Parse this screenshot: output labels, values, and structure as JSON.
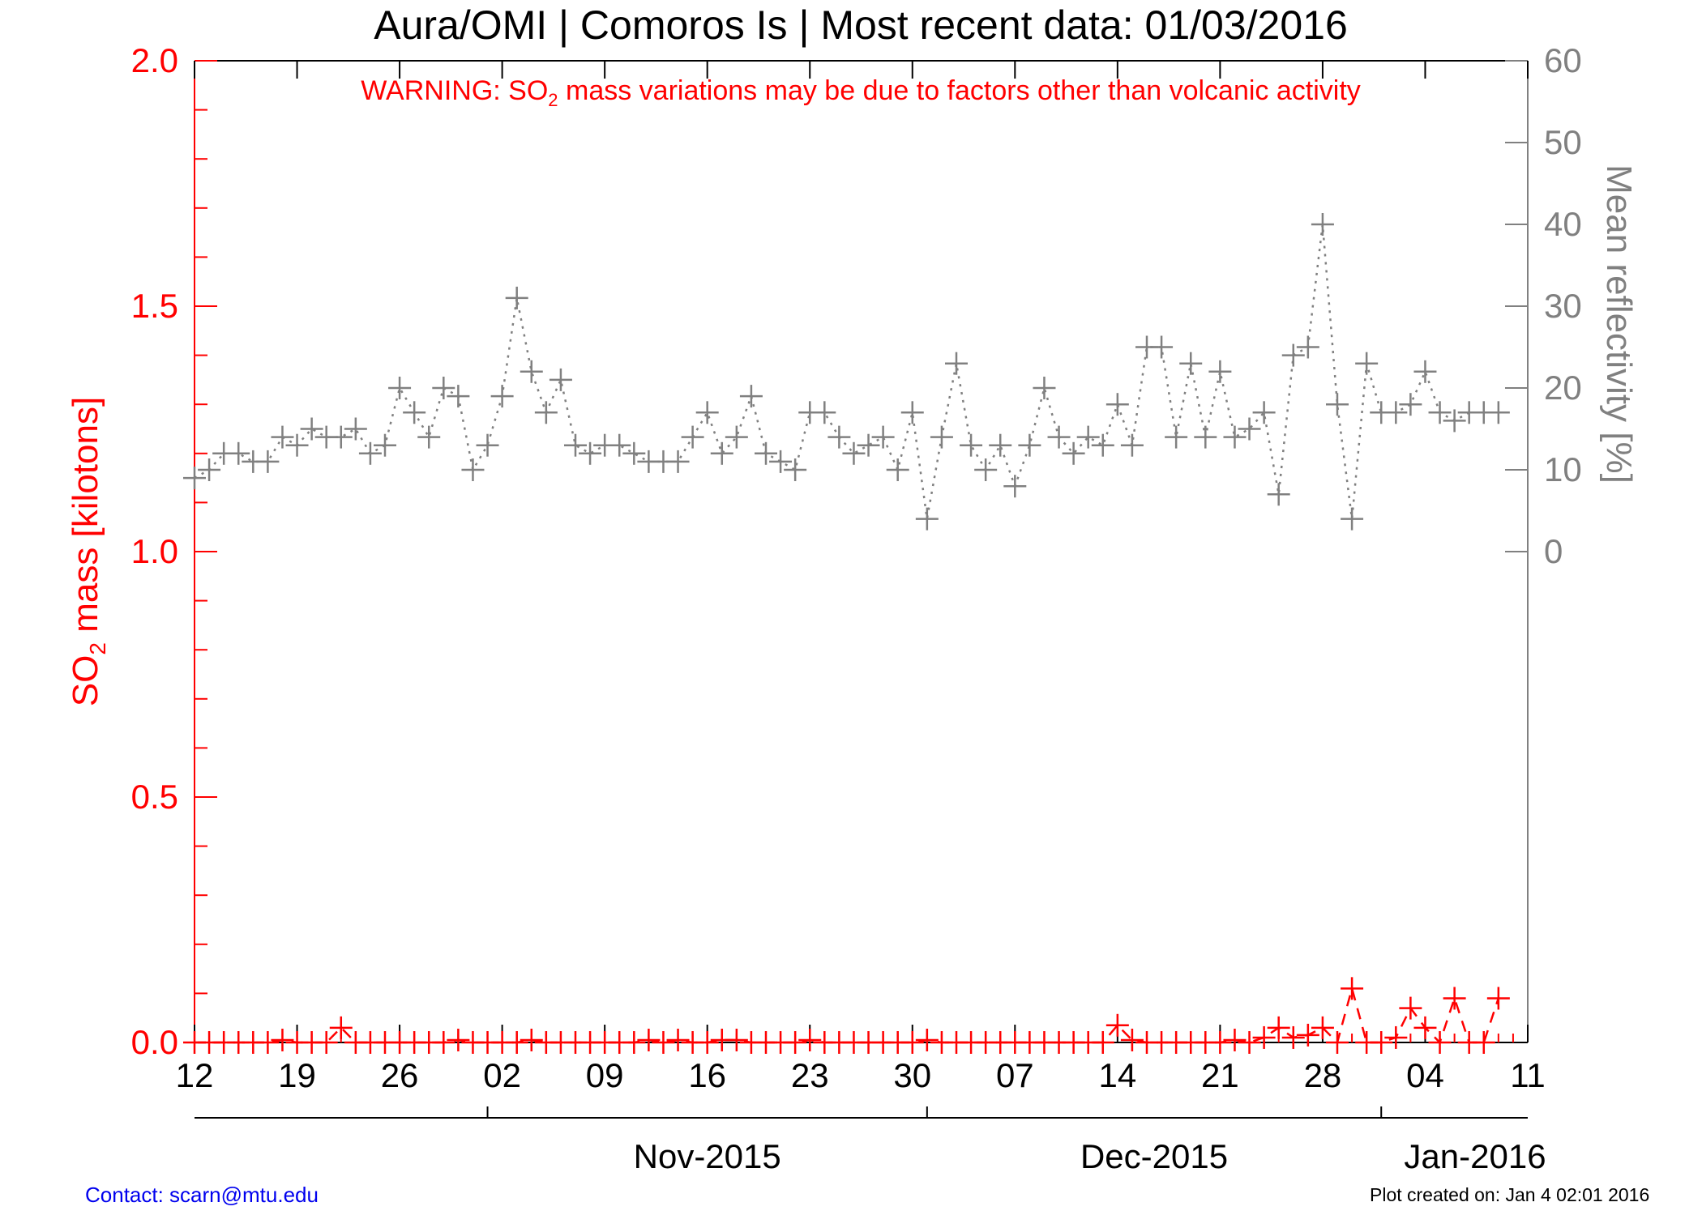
{
  "chart_data": {
    "type": "scatter",
    "title": "Aura/OMI | Comoros Is | Most recent data: 01/03/2016",
    "warning": {
      "prefix": "WARNING: SO",
      "subscript": "2",
      "suffix": " mass variations may be due to factors other than volcanic activity"
    },
    "ylabel_left": {
      "prefix": "SO",
      "subscript": "2",
      "suffix": " mass [kilotons]"
    },
    "ylabel_right": "Mean reflectivity [%]",
    "ylim_left": [
      0,
      2.0
    ],
    "ylim_right": [
      -60,
      60
    ],
    "left_ticks": [
      "0.0",
      "0.5",
      "1.0",
      "1.5",
      "2.0"
    ],
    "right_ticks": [
      "0",
      "10",
      "20",
      "30",
      "40",
      "50",
      "60"
    ],
    "x_tick_labels": [
      "12",
      "19",
      "26",
      "02",
      "09",
      "16",
      "23",
      "30",
      "07",
      "14",
      "21",
      "28",
      "04",
      "11"
    ],
    "month_labels": [
      "Nov-2015",
      "Dec-2015",
      "Jan-2016"
    ],
    "xlim_days_from_oct12": [
      0,
      91
    ],
    "colors": {
      "so2": "#ff0000",
      "reflectivity": "#808080",
      "axis": "#000000"
    },
    "series": [
      {
        "name": "SO2 mass",
        "axis": "left",
        "marker": "+",
        "line": "dashed",
        "x": [
          0,
          1,
          2,
          3,
          4,
          5,
          6,
          7,
          8,
          9,
          10,
          11,
          12,
          13,
          14,
          15,
          16,
          17,
          18,
          19,
          20,
          21,
          22,
          23,
          24,
          25,
          26,
          27,
          28,
          29,
          30,
          31,
          32,
          33,
          34,
          35,
          36,
          37,
          38,
          39,
          40,
          41,
          42,
          43,
          44,
          45,
          46,
          47,
          48,
          49,
          50,
          51,
          52,
          53,
          54,
          55,
          56,
          57,
          58,
          59,
          60,
          61,
          62,
          63,
          64,
          65,
          66,
          67,
          68,
          69,
          70,
          71,
          72,
          73,
          74,
          75,
          76,
          77,
          78,
          79,
          80,
          81,
          82,
          83,
          84,
          85,
          86,
          87,
          88,
          89
        ],
        "y": [
          0.0,
          0.0,
          0.0,
          0.0,
          0.0,
          0.0,
          0.005,
          0.0,
          0.0,
          0.0,
          0.03,
          0.0,
          0.0,
          0.0,
          0.0,
          0.0,
          0.0,
          0.0,
          0.005,
          0.0,
          0.0,
          0.0,
          0.0,
          0.005,
          0.0,
          0.0,
          0.0,
          0.0,
          0.0,
          0.0,
          0.0,
          0.005,
          0.0,
          0.005,
          0.0,
          0.0,
          0.005,
          0.005,
          0.0,
          0.0,
          0.0,
          0.0,
          0.005,
          0.0,
          0.0,
          0.0,
          0.0,
          0.0,
          0.0,
          0.0,
          0.005,
          0.0,
          0.0,
          0.0,
          0.0,
          0.0,
          0.0,
          0.0,
          0.0,
          0.0,
          0.0,
          0.0,
          0.0,
          0.035,
          0.005,
          0.0,
          0.0,
          0.0,
          0.0,
          0.0,
          0.0,
          0.005,
          0.0,
          0.01,
          0.03,
          0.01,
          0.015,
          0.03,
          0.0,
          0.11,
          0.0,
          0.0,
          0.01,
          0.07,
          0.03,
          0.0,
          0.09,
          0.0,
          0.0,
          0.09
        ]
      },
      {
        "name": "Mean reflectivity",
        "axis": "right",
        "marker": "+",
        "line": "dotted",
        "x": [
          0,
          1,
          2,
          3,
          4,
          5,
          6,
          7,
          8,
          9,
          10,
          11,
          12,
          13,
          14,
          15,
          16,
          17,
          18,
          19,
          20,
          21,
          22,
          23,
          24,
          25,
          26,
          27,
          28,
          29,
          30,
          31,
          32,
          33,
          34,
          35,
          36,
          37,
          38,
          39,
          40,
          41,
          42,
          43,
          44,
          45,
          46,
          47,
          48,
          49,
          50,
          51,
          52,
          53,
          54,
          55,
          56,
          57,
          58,
          59,
          60,
          61,
          62,
          63,
          64,
          65,
          66,
          67,
          68,
          69,
          70,
          71,
          72,
          73,
          74,
          75,
          76,
          77,
          78,
          79,
          80,
          81,
          82,
          83,
          84,
          85,
          86,
          87,
          88,
          89
        ],
        "y": [
          9,
          10,
          12,
          12,
          11,
          11,
          14,
          13,
          15,
          14,
          14,
          15,
          12,
          13,
          20,
          17,
          14,
          20,
          19,
          10,
          13,
          19,
          31,
          22,
          17,
          21,
          13,
          12,
          13,
          13,
          12,
          11,
          11,
          11,
          14,
          17,
          12,
          14,
          19,
          12,
          11,
          10,
          17,
          17,
          14,
          12,
          13,
          14,
          10,
          17,
          4,
          14,
          23,
          13,
          10,
          13,
          8,
          13,
          20,
          14,
          12,
          14,
          13,
          18,
          13,
          25,
          25,
          14,
          23,
          14,
          22,
          14,
          15,
          17,
          7,
          24,
          25,
          40,
          18,
          4,
          23,
          17,
          17,
          18,
          22,
          17,
          16,
          17,
          17,
          17
        ]
      }
    ]
  },
  "footer": {
    "contact": "Contact: scarn@mtu.edu",
    "created": "Plot created on: Jan  4 02:01 2016"
  }
}
